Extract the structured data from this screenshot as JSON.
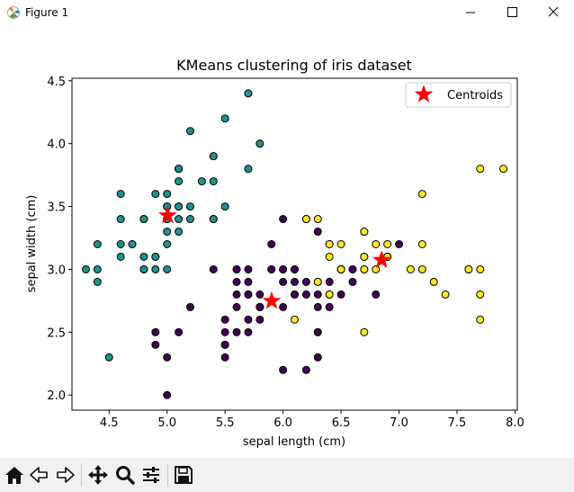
{
  "window": {
    "title": "Figure 1"
  },
  "toolbar": {
    "buttons": [
      {
        "name": "home-button",
        "icon": "home-icon"
      },
      {
        "name": "back-button",
        "icon": "back-arrow-icon"
      },
      {
        "name": "forward-button",
        "icon": "forward-arrow-icon"
      },
      {
        "name": "pan-button",
        "icon": "move-arrows-icon"
      },
      {
        "name": "zoom-button",
        "icon": "magnifier-icon"
      },
      {
        "name": "configure-subplots-button",
        "icon": "sliders-icon"
      },
      {
        "name": "save-button",
        "icon": "floppy-disk-icon"
      }
    ]
  },
  "chart_data": {
    "type": "scatter",
    "title": "KMeans clustering of iris dataset",
    "xlabel": "sepal length (cm)",
    "ylabel": "sepal width (cm)",
    "xlim": [
      4.18,
      8.02
    ],
    "ylim": [
      1.88,
      4.52
    ],
    "xticks": [
      "4.5",
      "5.0",
      "5.5",
      "6.0",
      "6.5",
      "7.0",
      "7.5",
      "8.0"
    ],
    "yticks": [
      "2.0",
      "2.5",
      "3.0",
      "3.5",
      "4.0",
      "4.5"
    ],
    "xtick_values": [
      4.5,
      5.0,
      5.5,
      6.0,
      6.5,
      7.0,
      7.5,
      8.0
    ],
    "ytick_values": [
      2.0,
      2.5,
      3.0,
      3.5,
      4.0,
      4.5
    ],
    "grid": false,
    "legend": {
      "position": "top-right",
      "entries": [
        "Centroids"
      ]
    },
    "colors": {
      "teal": "#21918c",
      "purple": "#440154",
      "yellow": "#fde725",
      "centroid": "#ff0000",
      "edge": "#000000"
    },
    "series": [
      {
        "color": "#21918c",
        "points": [
          [
            5.1,
            3.5
          ],
          [
            4.9,
            3.0
          ],
          [
            4.7,
            3.2
          ],
          [
            4.6,
            3.1
          ],
          [
            5.0,
            3.6
          ],
          [
            5.4,
            3.9
          ],
          [
            4.6,
            3.4
          ],
          [
            5.0,
            3.4
          ],
          [
            4.4,
            2.9
          ],
          [
            4.9,
            3.1
          ],
          [
            5.4,
            3.7
          ],
          [
            4.8,
            3.4
          ],
          [
            4.8,
            3.0
          ],
          [
            4.3,
            3.0
          ],
          [
            5.8,
            4.0
          ],
          [
            5.7,
            4.4
          ],
          [
            5.4,
            3.9
          ],
          [
            5.1,
            3.5
          ],
          [
            5.7,
            3.8
          ],
          [
            5.1,
            3.8
          ],
          [
            5.4,
            3.4
          ],
          [
            5.1,
            3.7
          ],
          [
            4.6,
            3.6
          ],
          [
            5.1,
            3.3
          ],
          [
            4.8,
            3.4
          ],
          [
            5.0,
            3.0
          ],
          [
            5.0,
            3.4
          ],
          [
            5.2,
            3.5
          ],
          [
            5.2,
            3.4
          ],
          [
            4.7,
            3.2
          ],
          [
            4.8,
            3.1
          ],
          [
            5.4,
            3.4
          ],
          [
            5.2,
            4.1
          ],
          [
            5.5,
            4.2
          ],
          [
            4.9,
            3.1
          ],
          [
            5.0,
            3.2
          ],
          [
            5.5,
            3.5
          ],
          [
            4.9,
            3.6
          ],
          [
            4.4,
            3.0
          ],
          [
            5.1,
            3.4
          ],
          [
            5.0,
            3.5
          ],
          [
            4.5,
            2.3
          ],
          [
            4.4,
            3.2
          ],
          [
            5.0,
            3.5
          ],
          [
            5.1,
            3.8
          ],
          [
            4.8,
            3.0
          ],
          [
            5.1,
            3.8
          ],
          [
            4.6,
            3.2
          ],
          [
            5.3,
            3.7
          ],
          [
            5.0,
            3.3
          ]
        ]
      },
      {
        "color": "#440154",
        "points": [
          [
            5.5,
            2.3
          ],
          [
            6.5,
            2.8
          ],
          [
            5.7,
            2.8
          ],
          [
            6.3,
            3.3
          ],
          [
            4.9,
            2.4
          ],
          [
            6.6,
            2.9
          ],
          [
            5.2,
            2.7
          ],
          [
            5.0,
            2.0
          ],
          [
            5.9,
            3.0
          ],
          [
            6.0,
            2.2
          ],
          [
            6.1,
            2.9
          ],
          [
            5.6,
            2.9
          ],
          [
            6.7,
            3.1
          ],
          [
            5.6,
            3.0
          ],
          [
            5.8,
            2.7
          ],
          [
            6.2,
            2.2
          ],
          [
            5.6,
            2.5
          ],
          [
            5.9,
            3.2
          ],
          [
            6.1,
            2.8
          ],
          [
            6.3,
            2.5
          ],
          [
            6.1,
            2.8
          ],
          [
            6.4,
            2.9
          ],
          [
            6.6,
            3.0
          ],
          [
            6.8,
            2.8
          ],
          [
            6.0,
            2.9
          ],
          [
            5.7,
            2.6
          ],
          [
            5.5,
            2.4
          ],
          [
            5.5,
            2.4
          ],
          [
            5.8,
            2.7
          ],
          [
            6.0,
            2.7
          ],
          [
            5.4,
            3.0
          ],
          [
            6.0,
            3.4
          ],
          [
            6.3,
            2.3
          ],
          [
            5.6,
            3.0
          ],
          [
            5.5,
            2.5
          ],
          [
            5.5,
            2.6
          ],
          [
            6.1,
            3.0
          ],
          [
            5.8,
            2.6
          ],
          [
            5.0,
            2.3
          ],
          [
            5.6,
            2.7
          ],
          [
            5.7,
            3.0
          ],
          [
            5.7,
            2.9
          ],
          [
            6.2,
            2.9
          ],
          [
            5.1,
            2.5
          ],
          [
            5.7,
            2.8
          ],
          [
            5.8,
            2.7
          ],
          [
            4.9,
            2.5
          ],
          [
            5.7,
            2.5
          ],
          [
            5.8,
            2.8
          ],
          [
            6.0,
            3.0
          ],
          [
            5.6,
            2.8
          ],
          [
            6.3,
            2.7
          ],
          [
            6.2,
            2.8
          ],
          [
            6.1,
            3.0
          ],
          [
            6.3,
            2.8
          ],
          [
            6.0,
            3.0
          ],
          [
            6.9,
            3.1
          ],
          [
            5.8,
            2.7
          ],
          [
            6.3,
            2.5
          ],
          [
            6.5,
            3.0
          ],
          [
            5.9,
            3.0
          ],
          [
            6.4,
            2.7
          ],
          [
            6.6,
            3.0
          ],
          [
            7.0,
            3.2
          ]
        ]
      },
      {
        "color": "#fde725",
        "points": [
          [
            6.4,
            3.2
          ],
          [
            6.9,
            3.1
          ],
          [
            6.7,
            3.0
          ],
          [
            6.3,
            2.9
          ],
          [
            7.6,
            3.0
          ],
          [
            7.3,
            2.9
          ],
          [
            6.7,
            2.5
          ],
          [
            7.2,
            3.6
          ],
          [
            6.5,
            3.2
          ],
          [
            6.8,
            3.0
          ],
          [
            6.4,
            3.2
          ],
          [
            6.5,
            3.0
          ],
          [
            7.7,
            3.8
          ],
          [
            7.7,
            2.6
          ],
          [
            6.9,
            3.2
          ],
          [
            7.7,
            2.8
          ],
          [
            6.7,
            3.3
          ],
          [
            7.2,
            3.2
          ],
          [
            6.2,
            3.4
          ],
          [
            6.4,
            2.8
          ],
          [
            7.2,
            3.0
          ],
          [
            7.4,
            2.8
          ],
          [
            7.9,
            3.8
          ],
          [
            6.4,
            2.8
          ],
          [
            7.7,
            3.0
          ],
          [
            6.3,
            3.4
          ],
          [
            6.4,
            3.1
          ],
          [
            6.9,
            3.1
          ],
          [
            6.7,
            3.1
          ],
          [
            6.9,
            3.1
          ],
          [
            6.8,
            3.2
          ],
          [
            6.7,
            3.3
          ],
          [
            6.7,
            3.0
          ],
          [
            6.5,
            3.0
          ],
          [
            6.2,
            3.4
          ],
          [
            6.1,
            2.6
          ],
          [
            7.1,
            3.0
          ],
          [
            6.3,
            2.9
          ],
          [
            6.5,
            3.0
          ],
          [
            7.6,
            3.0
          ]
        ]
      }
    ],
    "centroids": [
      [
        5.006,
        3.428
      ],
      [
        5.902,
        2.748
      ],
      [
        6.85,
        3.074
      ]
    ]
  }
}
